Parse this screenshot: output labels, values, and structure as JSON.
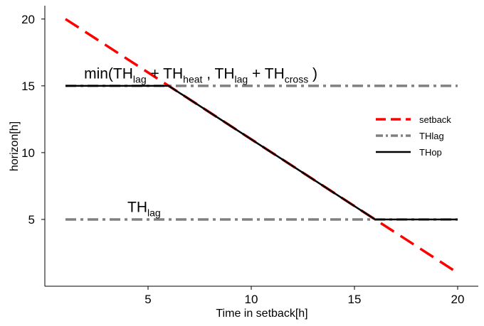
{
  "chart_data": {
    "type": "line",
    "title": "",
    "xlabel": "Time in setback[h]",
    "ylabel": "horizon[h]",
    "xlim": [
      0,
      21
    ],
    "ylim": [
      0,
      21
    ],
    "xticks": [
      5,
      10,
      15,
      20
    ],
    "yticks": [
      5,
      10,
      15,
      20
    ],
    "grid": false,
    "legend_position": "right",
    "series": [
      {
        "name": "setback",
        "color": "#ff0000",
        "style": "dashed",
        "x": [
          1,
          20
        ],
        "y": [
          20,
          1
        ]
      },
      {
        "name": "THlag",
        "color": "#808080",
        "style": "dash-dot",
        "segments": [
          {
            "x": [
              1,
              20
            ],
            "y": [
              15,
              15
            ]
          },
          {
            "x": [
              1,
              20
            ],
            "y": [
              5,
              5
            ]
          }
        ]
      },
      {
        "name": "THop",
        "color": "#000000",
        "style": "solid",
        "x": [
          1,
          6,
          16,
          20
        ],
        "y": [
          15,
          15,
          5,
          5
        ]
      }
    ],
    "annotations": [
      {
        "id": "upper",
        "x": 1.9,
        "y": 15.55,
        "parts": [
          {
            "t": "min(TH"
          },
          {
            "t": "lag",
            "sub": true
          },
          {
            "t": " + TH"
          },
          {
            "t": "heat",
            "sub": true
          },
          {
            "t": " , TH"
          },
          {
            "t": "lag",
            "sub": true
          },
          {
            "t": " + TH"
          },
          {
            "t": "cross",
            "sub": true
          },
          {
            "t": " )"
          }
        ]
      },
      {
        "id": "lower",
        "x": 4.0,
        "y": 5.55,
        "parts": [
          {
            "t": "TH"
          },
          {
            "t": "lag",
            "sub": true
          }
        ]
      }
    ]
  }
}
